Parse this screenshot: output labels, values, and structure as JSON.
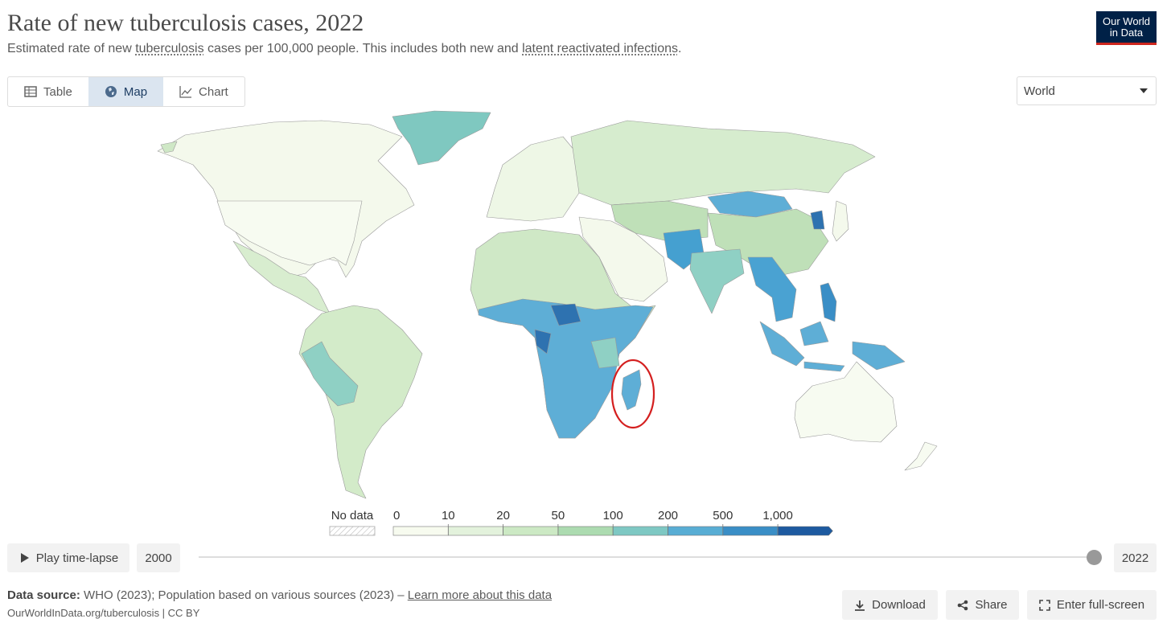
{
  "header": {
    "title": "Rate of new tuberculosis cases, 2022",
    "subtitle": [
      "Estimated rate of new ",
      "tuberculosis",
      " cases per 100,000 people. This includes both new and ",
      "latent reactivated infections",
      "."
    ]
  },
  "logo": [
    "Our World",
    "in Data"
  ],
  "tabs": [
    "Table",
    "Map",
    "Chart"
  ],
  "region_select": "World",
  "legend": {
    "no_data": "No data",
    "bins": [
      "0",
      "10",
      "20",
      "50",
      "100",
      "200",
      "500",
      "1,000"
    ]
  },
  "timeline": {
    "play": "Play time-lapse",
    "start": "2000",
    "end": "2022"
  },
  "footer": {
    "source_label": "Data source:",
    "source_text": " WHO (2023); Population based on various sources (2023) – ",
    "source_link": "Learn more about this data",
    "url": "OurWorldInData.org/tuberculosis | CC BY"
  },
  "actions": [
    "Download",
    "Share",
    "Enter full-screen"
  ]
}
